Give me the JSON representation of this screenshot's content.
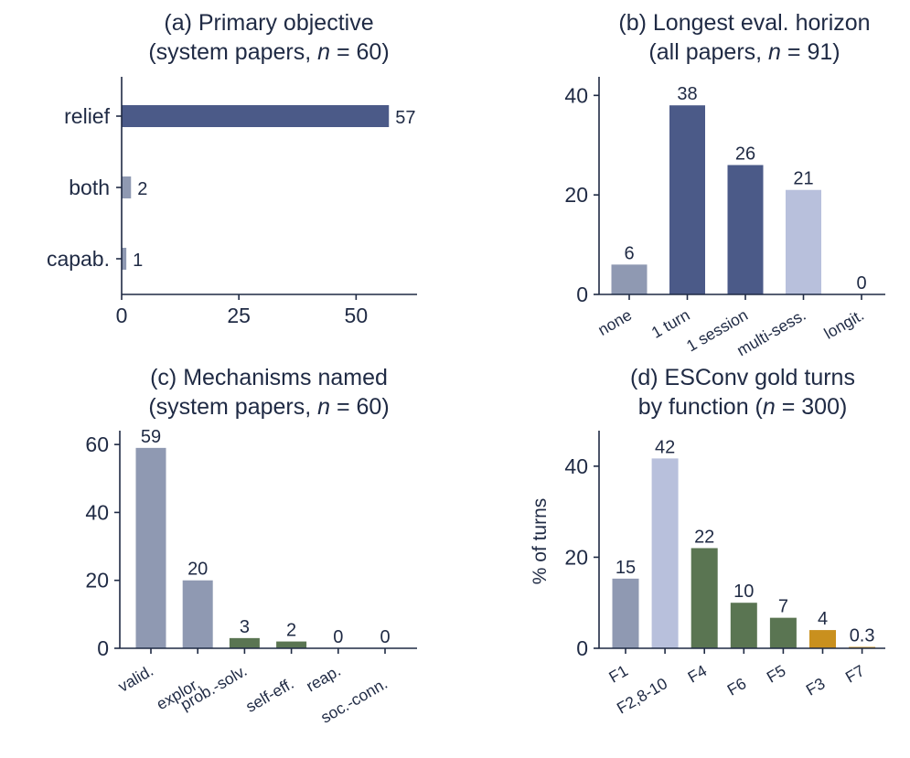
{
  "chart_data": [
    {
      "id": "a",
      "type": "bar",
      "orientation": "horizontal",
      "title_lines": [
        "(a) Primary objective",
        "(system papers, {n} = 60)"
      ],
      "categories": [
        "relief",
        "both",
        "capab."
      ],
      "values": [
        57,
        2,
        1
      ],
      "value_labels": [
        "57",
        "2",
        "1"
      ],
      "bar_colors": [
        "#4b5a88",
        "#8f99b2",
        "#8f99b2"
      ],
      "label_colors": [
        "#1f2a44",
        "#1f2a44",
        "#1f2a44"
      ],
      "xlim": [
        0,
        63
      ],
      "xticks": [
        0,
        25,
        50
      ],
      "xlabel": "",
      "ylabel": ""
    },
    {
      "id": "b",
      "type": "bar",
      "title_lines": [
        "(b) Longest eval. horizon",
        "(all papers, {n} = 91)"
      ],
      "categories": [
        "none",
        "1 turn",
        "1 session",
        "multi-sess.",
        "longit."
      ],
      "values": [
        6,
        38,
        26,
        21,
        0
      ],
      "value_labels": [
        "6",
        "38",
        "26",
        "21",
        "0"
      ],
      "bar_colors": [
        "#8f99b2",
        "#4b5a88",
        "#4b5a88",
        "#b8c0dc",
        "#c9901e"
      ],
      "label_colors": [
        "#1f2a44",
        "#1f2a44",
        "#1f2a44",
        "#1f2a44",
        "#c9901e"
      ],
      "ylim": [
        0,
        43
      ],
      "yticks": [
        0,
        20,
        40
      ],
      "xlabel": "",
      "ylabel": ""
    },
    {
      "id": "c",
      "type": "bar",
      "title_lines": [
        "(c) Mechanisms named",
        "(system papers, {n} = 60)"
      ],
      "categories": [
        "valid.",
        "explor.",
        "prob.-solv.",
        "self-eff.",
        "reap.",
        "soc.-conn."
      ],
      "values": [
        59,
        20,
        3,
        2,
        0,
        0
      ],
      "value_labels": [
        "59",
        "20",
        "3",
        "2",
        "0",
        "0"
      ],
      "bar_colors": [
        "#8f99b2",
        "#8f99b2",
        "#5a7552",
        "#5a7552",
        "#c9901e",
        "#c9901e"
      ],
      "label_colors": [
        "#1f2a44",
        "#1f2a44",
        "#1f2a44",
        "#1f2a44",
        "#c9901e",
        "#c9901e"
      ],
      "ylim": [
        0,
        63
      ],
      "yticks": [
        0,
        20,
        40,
        60
      ],
      "xlabel": "",
      "ylabel": ""
    },
    {
      "id": "d",
      "type": "bar",
      "title_lines": [
        "(d) ESConv gold turns",
        "by function ({n} = 300)"
      ],
      "categories": [
        "F1",
        "F2,8-10",
        "F4",
        "F6",
        "F5",
        "F3",
        "F7"
      ],
      "values": [
        15.3,
        41.7,
        22,
        10,
        6.7,
        4,
        0.3
      ],
      "value_labels": [
        "15",
        "42",
        "22",
        "10",
        "7",
        "4",
        "0.3"
      ],
      "bar_colors": [
        "#8f99b2",
        "#b8c0dc",
        "#5a7552",
        "#5a7552",
        "#5a7552",
        "#c9901e",
        "#c9901e"
      ],
      "label_colors": [
        "#1f2a44",
        "#1f2a44",
        "#1f2a44",
        "#1f2a44",
        "#1f2a44",
        "#c9901e",
        "#c9901e"
      ],
      "ylim": [
        0,
        47
      ],
      "yticks": [
        0,
        20,
        40
      ],
      "xlabel": "",
      "ylabel": "% of turns"
    }
  ],
  "colors": {
    "ink": "#1f2a44",
    "dark_blue": "#4b5a88",
    "gray_blue": "#8f99b2",
    "light_blue": "#b8c0dc",
    "green": "#5a7552",
    "gold": "#c9901e"
  }
}
